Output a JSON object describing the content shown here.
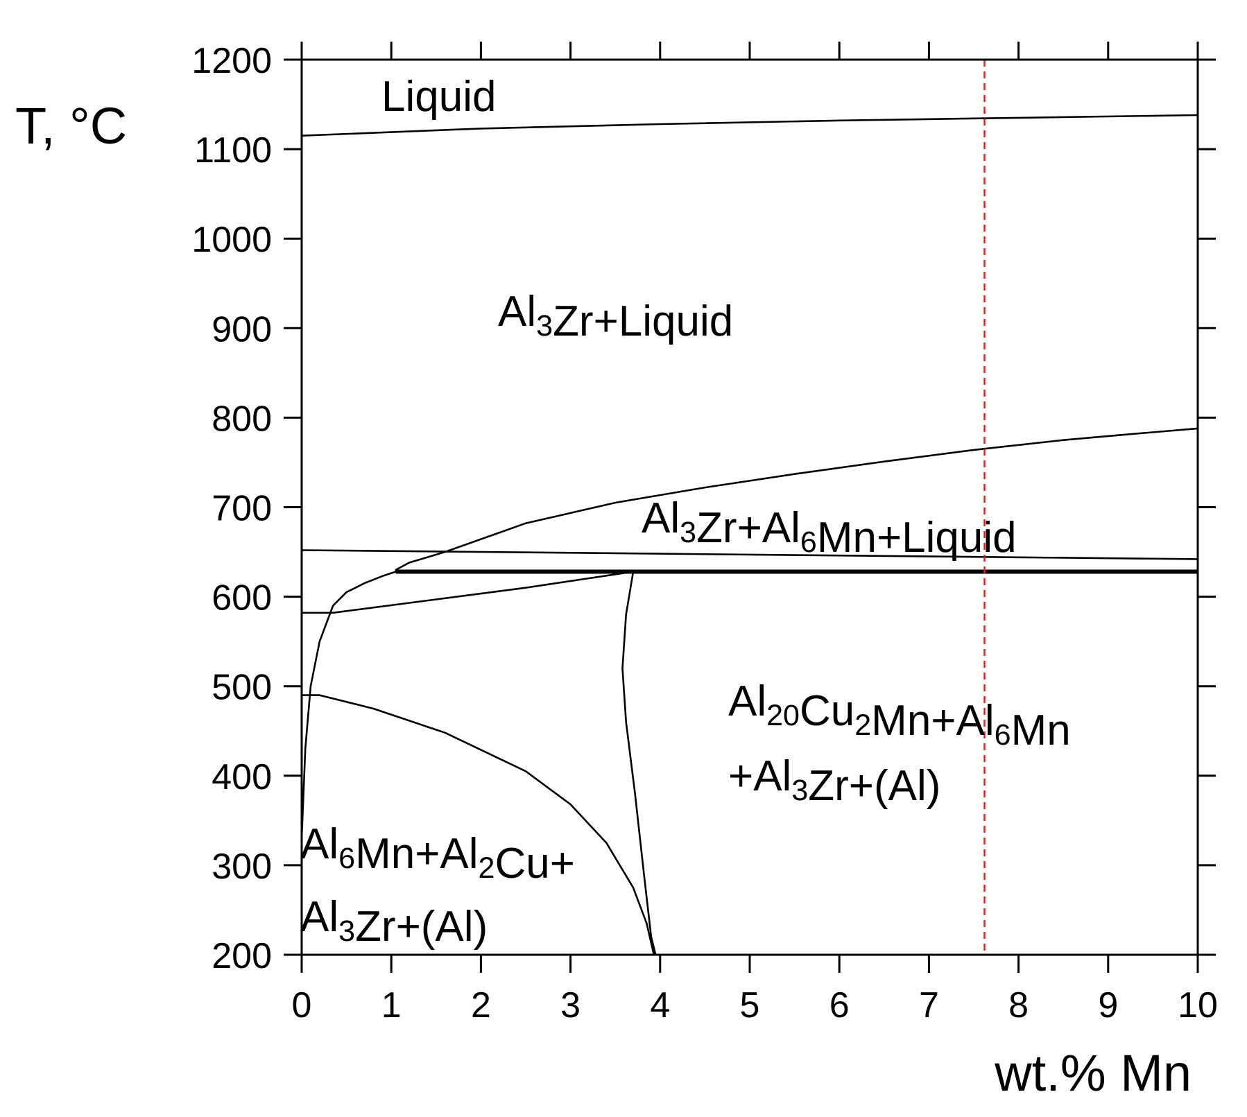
{
  "chart_data": {
    "type": "phase-diagram",
    "title": "",
    "xlabel": "wt.% Mn",
    "ylabel": "T, °C",
    "xlim": [
      0,
      10
    ],
    "ylim": [
      200,
      1200
    ],
    "x_ticks": [
      0,
      1,
      2,
      3,
      4,
      5,
      6,
      7,
      8,
      9,
      10
    ],
    "y_ticks": [
      200,
      300,
      400,
      500,
      600,
      700,
      800,
      900,
      1000,
      1100,
      1200
    ],
    "grid": false,
    "boundaries": [
      {
        "id": "liquidus-al3zr",
        "points": [
          [
            0,
            1115
          ],
          [
            2,
            1123
          ],
          [
            4,
            1128
          ],
          [
            6,
            1132
          ],
          [
            8,
            1135
          ],
          [
            10,
            1138
          ]
        ]
      },
      {
        "id": "liquidus-al6mn",
        "points": [
          [
            1.05,
            630
          ],
          [
            1.2,
            638
          ],
          [
            1.6,
            650
          ],
          [
            2.5,
            682
          ],
          [
            3.5,
            705
          ],
          [
            4.5,
            722
          ],
          [
            5.5,
            737
          ],
          [
            6.5,
            751
          ],
          [
            7.5,
            764
          ],
          [
            8.5,
            775
          ],
          [
            9.3,
            782
          ],
          [
            10,
            788
          ]
        ]
      },
      {
        "id": "upper-three-phase-boundary",
        "points": [
          [
            0,
            652
          ],
          [
            2,
            650
          ],
          [
            4,
            648
          ],
          [
            6,
            646
          ],
          [
            8,
            644
          ],
          [
            10,
            642
          ]
        ]
      },
      {
        "id": "eutectic-isotherm",
        "emphasis": "thick",
        "points": [
          [
            1.05,
            628
          ],
          [
            10,
            628
          ]
        ]
      },
      {
        "id": "al-solvus-curve",
        "points": [
          [
            0,
            330
          ],
          [
            0.04,
            430
          ],
          [
            0.1,
            500
          ],
          [
            0.2,
            550
          ],
          [
            0.35,
            590
          ],
          [
            0.5,
            605
          ],
          [
            0.7,
            615
          ],
          [
            0.9,
            623
          ],
          [
            1.05,
            628
          ]
        ]
      },
      {
        "id": "lower-solidus-line",
        "points": [
          [
            0,
            582
          ],
          [
            0.35,
            582
          ],
          [
            1.5,
            597
          ],
          [
            2.5,
            610
          ],
          [
            3.7,
            628
          ]
        ]
      },
      {
        "id": "al2cu-solvus",
        "points": [
          [
            0,
            490
          ],
          [
            0.2,
            490
          ],
          [
            0.8,
            475
          ],
          [
            1.6,
            448
          ],
          [
            2.5,
            405
          ],
          [
            3.0,
            368
          ],
          [
            3.4,
            325
          ],
          [
            3.7,
            275
          ],
          [
            3.85,
            235
          ],
          [
            3.93,
            200
          ]
        ]
      },
      {
        "id": "al20cu2mn-boundary",
        "points": [
          [
            3.7,
            628
          ],
          [
            3.62,
            580
          ],
          [
            3.58,
            520
          ],
          [
            3.62,
            460
          ],
          [
            3.72,
            380
          ],
          [
            3.82,
            290
          ],
          [
            3.9,
            220
          ],
          [
            3.95,
            200
          ]
        ]
      }
    ],
    "reference_line": {
      "x": 7.62,
      "style": "dashed",
      "color": "#e02020"
    },
    "regions": [
      {
        "id": "liquid",
        "label": "Liquid"
      },
      {
        "id": "al3zr-liquid",
        "parts": [
          [
            "Al",
            ""
          ],
          [
            "3",
            "sub"
          ],
          [
            "Zr+Liquid",
            ""
          ]
        ]
      },
      {
        "id": "al3zr-al6mn-liquid",
        "parts": [
          [
            "Al",
            ""
          ],
          [
            "3",
            "sub"
          ],
          [
            "Zr+Al",
            ""
          ],
          [
            "6",
            "sub"
          ],
          [
            "Mn+Liquid",
            ""
          ]
        ]
      },
      {
        "id": "al20cu2mn-line1",
        "parts": [
          [
            "Al",
            ""
          ],
          [
            "20",
            "sub"
          ],
          [
            "Cu",
            ""
          ],
          [
            "2",
            "sub"
          ],
          [
            "Mn+Al",
            ""
          ],
          [
            "6",
            "sub"
          ],
          [
            "Mn",
            ""
          ]
        ]
      },
      {
        "id": "al20cu2mn-line2",
        "parts": [
          [
            "+Al",
            ""
          ],
          [
            "3",
            "sub"
          ],
          [
            "Zr+(Al)",
            ""
          ]
        ]
      },
      {
        "id": "al6mn-al2cu-line1",
        "parts": [
          [
            "Al",
            ""
          ],
          [
            "6",
            "sub"
          ],
          [
            "Mn+Al",
            ""
          ],
          [
            "2",
            "sub"
          ],
          [
            "Cu+",
            ""
          ]
        ]
      },
      {
        "id": "al6mn-al2cu-line2",
        "parts": [
          [
            "Al",
            ""
          ],
          [
            "3",
            "sub"
          ],
          [
            "Zr+(Al)",
            ""
          ]
        ]
      }
    ]
  }
}
